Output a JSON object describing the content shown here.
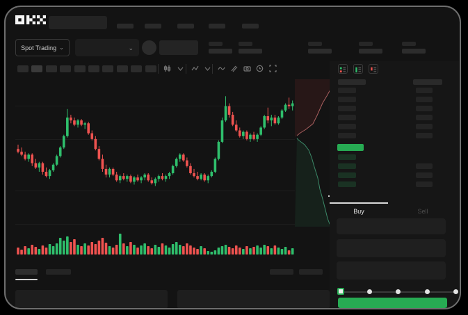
{
  "brand": {
    "name": "OKX"
  },
  "colors": {
    "up": "#2fbf6c",
    "down": "#ef5350",
    "accent_green": "#27ab53",
    "background": "#131313",
    "bid_row_tint": "#1a3223"
  },
  "header": {
    "nav_placeholder_count": 5
  },
  "market_bar": {
    "market_type_label": "Spot Trading",
    "dropdown_chevron": "⌄",
    "stat_placeholder_count": 5
  },
  "toolbar": {
    "placeholder_count": 10,
    "icons": [
      "candle-style-icon",
      "chevron-down-icon",
      "indicator-icon",
      "chevron-down-icon",
      "line-tool-icon",
      "compare-icon",
      "camera-icon",
      "settings-icon",
      "fullscreen-icon"
    ]
  },
  "chart_data": {
    "type": "candlestick",
    "title": "",
    "xlabel": "",
    "ylabel": "",
    "price_scale": "normalized 0-100",
    "grid": "horizontal-faint",
    "candles": [
      [
        56,
        59,
        53,
        54
      ],
      [
        54,
        57,
        51,
        52
      ],
      [
        52,
        54,
        48,
        49
      ],
      [
        49,
        53,
        47,
        52
      ],
      [
        52,
        53,
        44,
        46
      ],
      [
        46,
        49,
        42,
        43
      ],
      [
        43,
        47,
        40,
        46
      ],
      [
        46,
        47,
        38,
        40
      ],
      [
        40,
        43,
        36,
        37
      ],
      [
        37,
        42,
        35,
        41
      ],
      [
        41,
        46,
        40,
        45
      ],
      [
        45,
        52,
        44,
        51
      ],
      [
        51,
        58,
        50,
        57
      ],
      [
        57,
        66,
        56,
        65
      ],
      [
        65,
        84,
        64,
        78
      ],
      [
        78,
        80,
        74,
        76
      ],
      [
        76,
        78,
        72,
        73
      ],
      [
        73,
        77,
        71,
        76
      ],
      [
        76,
        77,
        72,
        73
      ],
      [
        73,
        75,
        70,
        74
      ],
      [
        74,
        75,
        66,
        67
      ],
      [
        67,
        69,
        62,
        63
      ],
      [
        63,
        65,
        55,
        56
      ],
      [
        56,
        58,
        48,
        49
      ],
      [
        49,
        52,
        40,
        42
      ],
      [
        42,
        45,
        36,
        38
      ],
      [
        38,
        43,
        36,
        42
      ],
      [
        42,
        43,
        37,
        38
      ],
      [
        38,
        40,
        33,
        34
      ],
      [
        34,
        38,
        32,
        37
      ],
      [
        37,
        39,
        34,
        35
      ],
      [
        35,
        38,
        33,
        37
      ],
      [
        37,
        38,
        32,
        33
      ],
      [
        33,
        37,
        31,
        36
      ],
      [
        36,
        38,
        33,
        34
      ],
      [
        34,
        37,
        32,
        36
      ],
      [
        36,
        39,
        34,
        38
      ],
      [
        38,
        39,
        33,
        34
      ],
      [
        34,
        36,
        31,
        32
      ],
      [
        32,
        36,
        30,
        35
      ],
      [
        35,
        38,
        33,
        37
      ],
      [
        37,
        39,
        34,
        35
      ],
      [
        35,
        38,
        33,
        37
      ],
      [
        37,
        40,
        35,
        39
      ],
      [
        39,
        45,
        38,
        44
      ],
      [
        44,
        50,
        43,
        49
      ],
      [
        49,
        53,
        47,
        52
      ],
      [
        52,
        53,
        47,
        48
      ],
      [
        48,
        50,
        43,
        44
      ],
      [
        44,
        46,
        38,
        39
      ],
      [
        39,
        42,
        36,
        37
      ],
      [
        37,
        40,
        34,
        35
      ],
      [
        35,
        39,
        34,
        38
      ],
      [
        38,
        39,
        33,
        34
      ],
      [
        34,
        38,
        32,
        37
      ],
      [
        37,
        41,
        36,
        40
      ],
      [
        40,
        50,
        39,
        49
      ],
      [
        49,
        62,
        48,
        61
      ],
      [
        61,
        78,
        60,
        76
      ],
      [
        76,
        93,
        75,
        86
      ],
      [
        86,
        88,
        78,
        80
      ],
      [
        80,
        82,
        72,
        73
      ],
      [
        73,
        76,
        68,
        69
      ],
      [
        69,
        71,
        64,
        65
      ],
      [
        65,
        69,
        63,
        68
      ],
      [
        68,
        69,
        62,
        63
      ],
      [
        63,
        67,
        61,
        66
      ],
      [
        66,
        68,
        62,
        63
      ],
      [
        63,
        67,
        61,
        66
      ],
      [
        66,
        72,
        65,
        71
      ],
      [
        71,
        80,
        70,
        79
      ],
      [
        79,
        85,
        74,
        76
      ],
      [
        76,
        80,
        72,
        78
      ],
      [
        78,
        80,
        73,
        74
      ],
      [
        74,
        79,
        73,
        78
      ],
      [
        78,
        84,
        77,
        83
      ],
      [
        83,
        88,
        82,
        87
      ],
      [
        87,
        92,
        84,
        86
      ],
      [
        86,
        90,
        83,
        88
      ]
    ],
    "volumes": [
      10,
      7,
      12,
      9,
      14,
      11,
      8,
      13,
      10,
      15,
      12,
      16,
      24,
      20,
      26,
      18,
      22,
      14,
      12,
      16,
      13,
      18,
      15,
      20,
      24,
      17,
      12,
      10,
      14,
      30,
      16,
      12,
      18,
      14,
      10,
      13,
      16,
      12,
      9,
      14,
      11,
      16,
      13,
      10,
      15,
      18,
      14,
      12,
      16,
      13,
      10,
      8,
      12,
      9,
      5,
      4,
      6,
      10,
      12,
      14,
      11,
      9,
      13,
      10,
      8,
      12,
      9,
      11,
      13,
      10,
      14,
      12,
      9,
      13,
      10,
      8,
      11,
      6,
      9
    ],
    "depth": {
      "asks_line": [
        [
          56,
          6
        ],
        [
          46,
          24
        ],
        [
          40,
          34
        ],
        [
          32,
          52
        ],
        [
          26,
          64
        ],
        [
          16,
          72
        ],
        [
          8,
          77
        ],
        [
          3,
          81
        ]
      ],
      "bids_line": [
        [
          3,
          85
        ],
        [
          6,
          88
        ],
        [
          14,
          94
        ],
        [
          20,
          102
        ],
        [
          24,
          112
        ],
        [
          28,
          126
        ],
        [
          33,
          142
        ],
        [
          36,
          158
        ],
        [
          40,
          172
        ],
        [
          44,
          188
        ],
        [
          47,
          200
        ],
        [
          50,
          208
        ],
        [
          56,
          210
        ]
      ]
    }
  },
  "order_book": {
    "view_icons": [
      "book-both-view-icon",
      "book-bids-view-icon",
      "book-asks-view-icon"
    ],
    "ask_rows": 6,
    "bid_rows": 4
  },
  "trade_panel": {
    "tabs": [
      {
        "label": "Buy",
        "active": true
      },
      {
        "label": "Sell",
        "active": false
      }
    ],
    "field_count": 3,
    "slider": {
      "positions": 5,
      "active_index": 0
    }
  }
}
